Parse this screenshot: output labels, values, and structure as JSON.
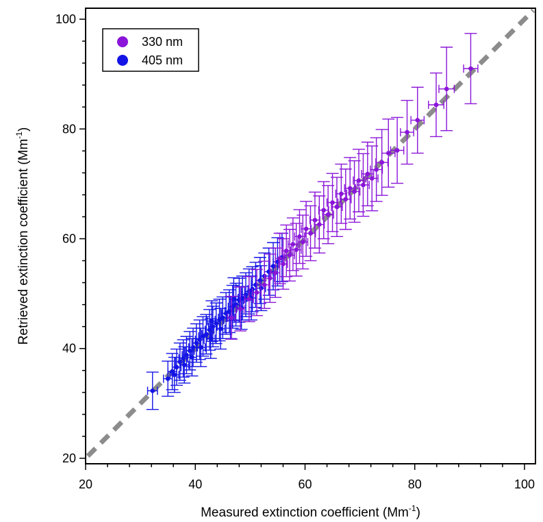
{
  "chart_data": {
    "type": "scatter",
    "xlabel": "Measured extinction coefficient (Mm-1)",
    "xlabel_base": "Measured extinction coefficient (Mm",
    "xlabel_sup": "-1",
    "xlabel_close": ")",
    "ylabel": "Retrieved extinction coefficient (Mm-1)",
    "ylabel_base": "Retrieved extinction coefficient (Mm",
    "ylabel_sup": "-1",
    "ylabel_close": ")",
    "xlim": [
      20,
      102
    ],
    "ylim": [
      19,
      102
    ],
    "xticks": [
      20,
      40,
      60,
      80,
      100
    ],
    "yticks": [
      20,
      40,
      60,
      80,
      100
    ],
    "grid": false,
    "legend_position": "top-left",
    "reference_line": {
      "type": "1:1",
      "color": "#8c8c8c",
      "style": "dashed"
    },
    "series": [
      {
        "name": "330 nm",
        "color": "#8a15d8",
        "points": [
          [
            90.2,
            91.0,
            1.3,
            6.4
          ],
          [
            85.8,
            87.3,
            1.4,
            7.6
          ],
          [
            83.9,
            84.4,
            1.4,
            5.8
          ],
          [
            80.5,
            81.6,
            1.2,
            6.0
          ],
          [
            78.6,
            79.4,
            1.2,
            5.8
          ],
          [
            76.8,
            76.1,
            1.2,
            6.0
          ],
          [
            75.2,
            75.6,
            1.2,
            6.2
          ],
          [
            74.0,
            73.9,
            1.1,
            6.0
          ],
          [
            73.0,
            72.6,
            1.1,
            5.8
          ],
          [
            72.2,
            71.0,
            1.1,
            5.9
          ],
          [
            71.4,
            71.8,
            1.1,
            5.8
          ],
          [
            70.6,
            69.8,
            1.1,
            5.7
          ],
          [
            69.8,
            70.6,
            1.0,
            5.7
          ],
          [
            69.0,
            68.6,
            1.0,
            5.6
          ],
          [
            68.2,
            69.2,
            1.0,
            5.6
          ],
          [
            67.4,
            67.2,
            1.0,
            5.5
          ],
          [
            66.6,
            68.2,
            1.0,
            5.4
          ],
          [
            65.8,
            65.8,
            1.0,
            5.4
          ],
          [
            65.0,
            66.6,
            1.0,
            5.3
          ],
          [
            64.2,
            64.4,
            1.0,
            5.3
          ],
          [
            63.4,
            65.2,
            0.9,
            5.2
          ],
          [
            62.6,
            62.6,
            0.9,
            5.2
          ],
          [
            61.8,
            63.4,
            0.9,
            5.1
          ],
          [
            61.0,
            61.0,
            0.9,
            5.0
          ],
          [
            60.2,
            61.8,
            0.9,
            5.0
          ],
          [
            59.6,
            59.4,
            0.9,
            4.9
          ],
          [
            59.0,
            60.4,
            0.9,
            4.9
          ],
          [
            58.4,
            58.0,
            0.9,
            4.8
          ],
          [
            57.8,
            59.0,
            0.9,
            4.8
          ],
          [
            57.2,
            57.0,
            0.9,
            4.7
          ],
          [
            56.6,
            57.8,
            0.8,
            4.7
          ],
          [
            56.0,
            55.4,
            0.8,
            4.6
          ],
          [
            55.4,
            56.4,
            0.8,
            4.6
          ],
          [
            54.6,
            53.8,
            0.8,
            4.5
          ],
          [
            53.6,
            52.8,
            0.8,
            4.4
          ],
          [
            52.6,
            51.6,
            0.8,
            4.3
          ],
          [
            51.2,
            50.2,
            0.8,
            4.2
          ],
          [
            49.8,
            49.0,
            0.8,
            4.1
          ],
          [
            48.2,
            47.2,
            0.7,
            4.0
          ],
          [
            46.6,
            45.6,
            0.7,
            3.9
          ]
        ]
      },
      {
        "name": "405 nm",
        "color": "#1414e6",
        "points": [
          [
            32.2,
            32.3,
            0.9,
            3.4
          ],
          [
            35.0,
            34.5,
            0.8,
            3.2
          ],
          [
            35.8,
            35.8,
            0.8,
            3.3
          ],
          [
            36.6,
            36.6,
            0.8,
            3.3
          ],
          [
            37.2,
            37.6,
            0.8,
            3.4
          ],
          [
            37.8,
            38.2,
            0.8,
            3.4
          ],
          [
            38.4,
            38.8,
            0.8,
            3.4
          ],
          [
            39.0,
            39.6,
            0.8,
            3.5
          ],
          [
            39.6,
            40.2,
            0.8,
            3.5
          ],
          [
            40.2,
            41.0,
            0.8,
            3.5
          ],
          [
            40.8,
            41.6,
            0.8,
            3.6
          ],
          [
            41.4,
            42.2,
            0.8,
            3.6
          ],
          [
            42.0,
            42.6,
            0.8,
            3.6
          ],
          [
            42.6,
            43.4,
            0.8,
            3.7
          ],
          [
            43.2,
            44.0,
            0.8,
            3.7
          ],
          [
            43.8,
            44.6,
            0.8,
            3.7
          ],
          [
            44.4,
            45.2,
            0.8,
            3.8
          ],
          [
            45.0,
            45.6,
            0.8,
            3.8
          ],
          [
            45.6,
            46.4,
            0.8,
            3.8
          ],
          [
            46.2,
            46.8,
            0.8,
            3.9
          ],
          [
            46.8,
            47.6,
            0.8,
            3.9
          ],
          [
            47.4,
            48.0,
            0.8,
            3.9
          ],
          [
            48.0,
            48.8,
            0.8,
            4.0
          ],
          [
            48.6,
            49.2,
            0.8,
            4.0
          ],
          [
            49.2,
            49.8,
            0.8,
            4.0
          ],
          [
            49.8,
            50.4,
            0.8,
            4.1
          ],
          [
            50.4,
            50.8,
            0.8,
            4.1
          ],
          [
            51.0,
            51.6,
            0.8,
            4.1
          ],
          [
            51.8,
            52.4,
            0.8,
            4.2
          ],
          [
            52.6,
            53.2,
            0.8,
            4.2
          ],
          [
            53.4,
            54.0,
            0.8,
            4.3
          ],
          [
            54.2,
            55.0,
            0.8,
            4.3
          ],
          [
            55.0,
            55.8,
            0.8,
            4.4
          ],
          [
            55.8,
            56.6,
            0.8,
            4.4
          ],
          [
            38.0,
            37.0,
            0.8,
            3.3
          ],
          [
            39.4,
            38.4,
            0.8,
            3.4
          ],
          [
            41.0,
            40.2,
            0.8,
            3.5
          ],
          [
            42.8,
            41.8,
            0.8,
            3.6
          ],
          [
            44.6,
            43.6,
            0.8,
            3.7
          ],
          [
            46.4,
            45.6,
            0.8,
            3.8
          ],
          [
            48.4,
            47.4,
            0.8,
            3.9
          ],
          [
            50.2,
            49.2,
            0.8,
            4.0
          ],
          [
            52.0,
            51.0,
            0.8,
            4.1
          ],
          [
            36.2,
            35.2,
            0.8,
            3.2
          ],
          [
            43.0,
            45.0,
            0.8,
            3.7
          ],
          [
            47.0,
            49.0,
            0.8,
            3.9
          ]
        ]
      }
    ]
  }
}
